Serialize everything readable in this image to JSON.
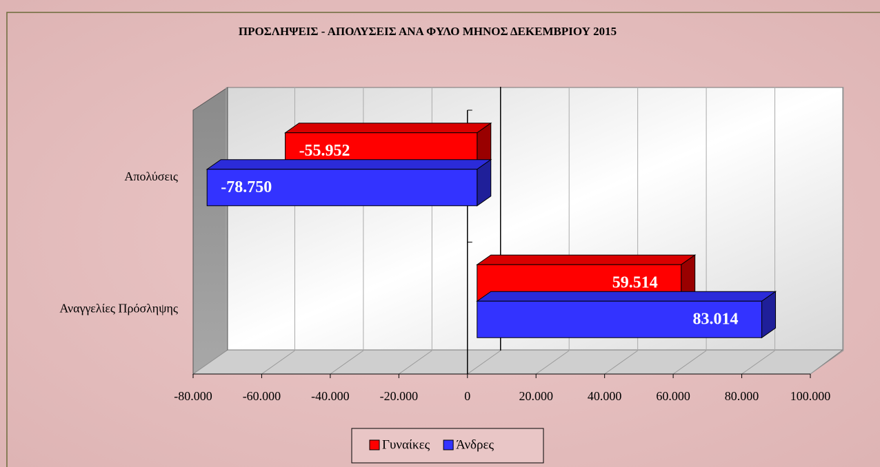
{
  "chart_data": {
    "type": "bar",
    "orientation": "horizontal",
    "title": "ΠΡΟΣΛΗΨΕΙΣ - ΑΠΟΛΥΣΕΙΣ ΑΝΑ ΦΥΛΟ ΜΗΝΟΣ ΔΕΚΕΜΒΡΙΟΥ 2015",
    "categories": [
      "Απολύσεις",
      "Αναγγελίες Πρόσληψης"
    ],
    "series": [
      {
        "name": "Γυναίκες",
        "color": "#ff0000",
        "values": [
          -55952,
          59514
        ],
        "value_labels": [
          "-55.952",
          "59.514"
        ]
      },
      {
        "name": "Άνδρες",
        "color": "#3333ff",
        "values": [
          -78750,
          83014
        ],
        "value_labels": [
          "-78.750",
          "83.014"
        ]
      }
    ],
    "xlim": [
      -80000,
      100000
    ],
    "xticks": [
      {
        "value": -80000,
        "label": "-80.000"
      },
      {
        "value": -60000,
        "label": "-60.000"
      },
      {
        "value": -40000,
        "label": "-40.000"
      },
      {
        "value": -20000,
        "label": "-20.000"
      },
      0,
      {
        "value": 20000,
        "label": "20.000"
      },
      {
        "value": 40000,
        "label": "40.000"
      },
      {
        "value": 60000,
        "label": "60.000"
      },
      {
        "value": 80000,
        "label": "80.000"
      },
      {
        "value": 100000,
        "label": "100.000"
      }
    ],
    "grid": true,
    "legend": "bottom"
  }
}
